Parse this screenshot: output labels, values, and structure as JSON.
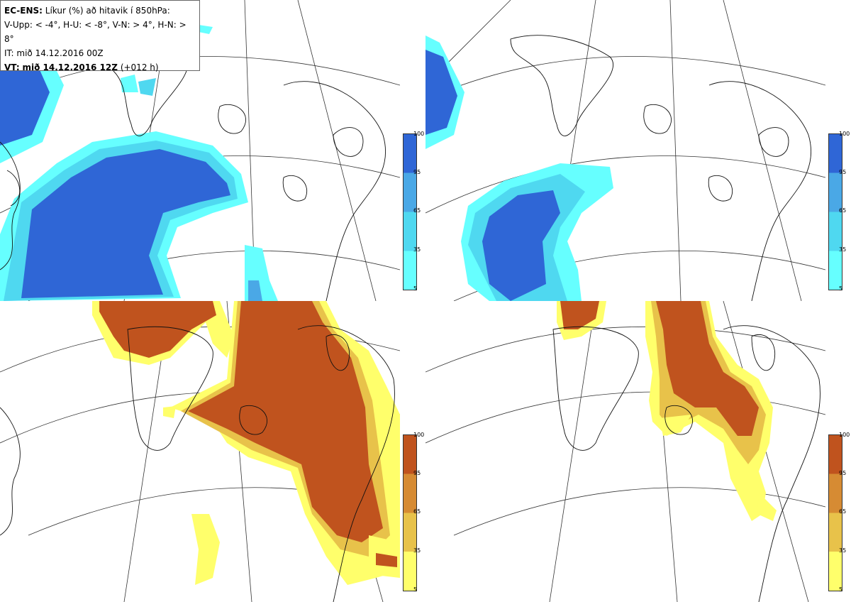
{
  "header": {
    "model": "EC-ENS:",
    "title": "Líkur (%) að hitavik í 850hPa:",
    "thresholds": "V-Upp: < -4°, H-U: < -8°, V-N: > 4°, H-N: > 8°",
    "init_time": "IT: mið 14.12.2016 00Z",
    "valid_label": "VT:",
    "valid_time": "mið 14.12.2016 12Z",
    "lead": "(+012 h)"
  },
  "colorbars": {
    "cold": {
      "colors": [
        "#66ffff",
        "#4fd8f0",
        "#4aa8e6",
        "#2f66d6"
      ],
      "labels": [
        "100",
        "95",
        "65",
        "35",
        "5"
      ]
    },
    "warm": {
      "colors": [
        "#ffff6b",
        "#e8c24a",
        "#d68b33",
        "#c0531e"
      ],
      "labels": [
        "100",
        "95",
        "65",
        "35",
        "5"
      ]
    }
  },
  "panels": [
    {
      "name": "cold-4",
      "scheme": "cold"
    },
    {
      "name": "cold-8",
      "scheme": "cold"
    },
    {
      "name": "warm-4",
      "scheme": "warm"
    },
    {
      "name": "warm-8",
      "scheme": "warm"
    }
  ]
}
